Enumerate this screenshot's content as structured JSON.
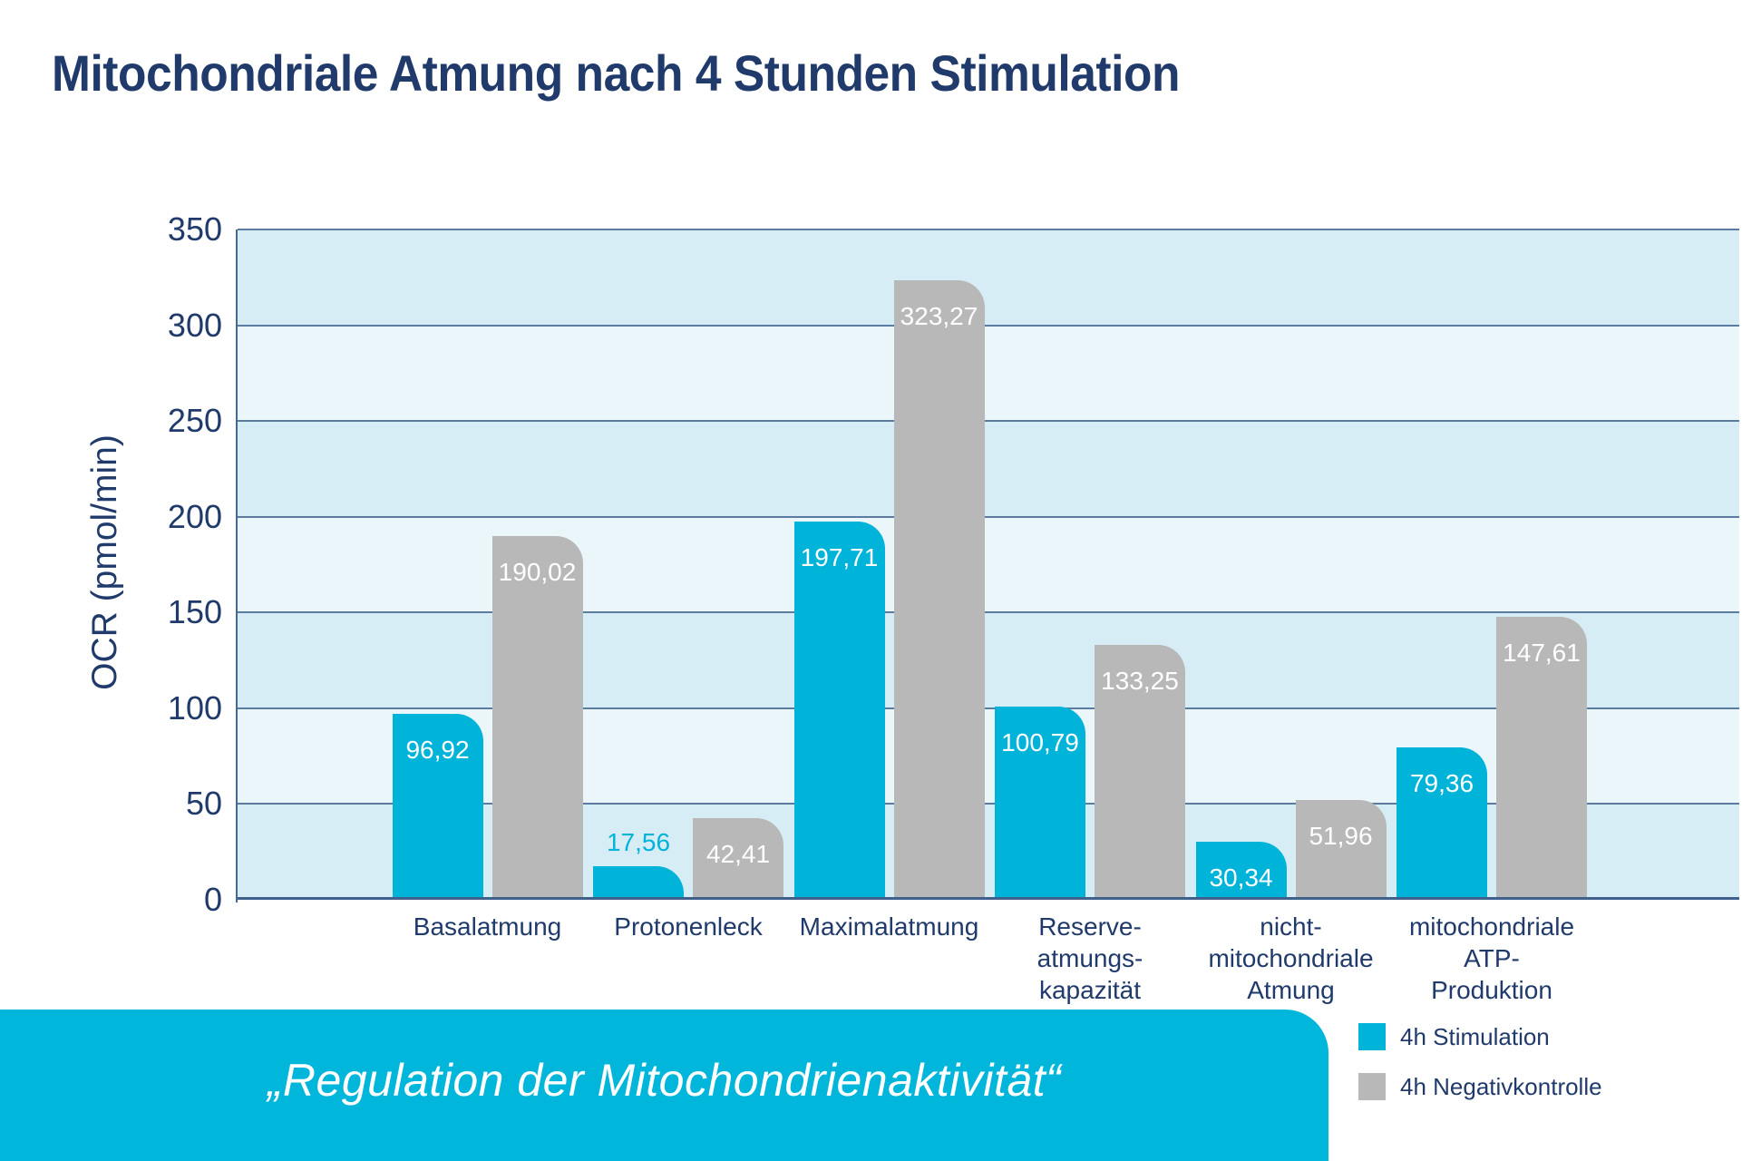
{
  "title": "Mitochondriale Atmung nach 4 Stunden Stimulation",
  "chart_data": {
    "type": "bar",
    "title": "Mitochondriale Atmung nach 4 Stunden Stimulation",
    "xlabel": "",
    "ylabel": "OCR (pmol/min)",
    "ylim": [
      0,
      350
    ],
    "ytick_step": 50,
    "grid": true,
    "legend_position": "bottom-right",
    "categories": [
      "Basalatmung",
      "Protonenleck",
      "Maximalatmung",
      "Reserve-atmungs-kapazität",
      "nicht-mitochondriale Atmung",
      "mitochondriale ATP-Produktion"
    ],
    "category_lines": [
      [
        "Basalatmung"
      ],
      [
        "Protonenleck"
      ],
      [
        "Maximalatmung"
      ],
      [
        "Reserve-",
        "atmungs-",
        "kapazität"
      ],
      [
        "nicht-",
        "mitochondriale",
        "Atmung"
      ],
      [
        "mitochondriale",
        "ATP-",
        "Produktion"
      ]
    ],
    "series": [
      {
        "name": "4h Stimulation",
        "color": "#00b3d8",
        "values": [
          96.92,
          17.56,
          197.71,
          100.79,
          30.34,
          79.36
        ]
      },
      {
        "name": "4h Negativkontrolle",
        "color": "#b9b8b8",
        "values": [
          190.02,
          42.41,
          323.27,
          133.25,
          51.96,
          147.61
        ]
      }
    ],
    "value_labels": [
      [
        "96,92",
        "17,56",
        "197,71",
        "100,79",
        "30,34",
        "79,36"
      ],
      [
        "190,02",
        "42,41",
        "323,27",
        "133,25",
        "51,96",
        "147,61"
      ]
    ],
    "band_colors": [
      "#d7edf6",
      "#ebf6fb"
    ]
  },
  "legend": {
    "items": [
      {
        "label": "4h Stimulation",
        "color": "#00b3d8"
      },
      {
        "label": "4h Negativkontrolle",
        "color": "#b9b8b8"
      }
    ]
  },
  "banner": {
    "text": "„Regulation der Mitochondrienaktivität“",
    "color": "#00b6da"
  },
  "colors": {
    "title_text": "#203a6b",
    "axis_text": "#203a6b",
    "gridline": "#5b7ba1",
    "bar_value_text": "#ffffff",
    "small_bar_value_text": "#00b3d8"
  }
}
